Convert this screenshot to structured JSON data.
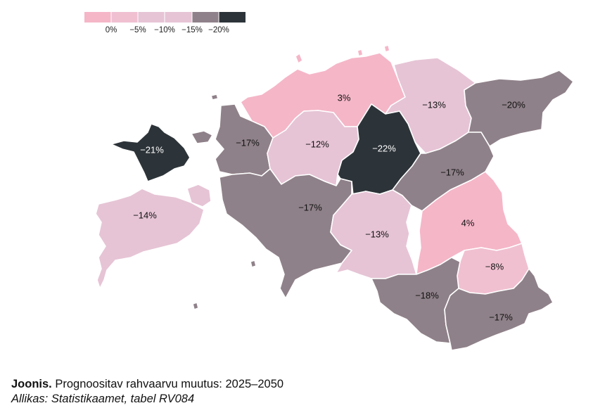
{
  "colors": {
    "bin0": "#f5b6c8",
    "bin1": "#f0c0d1",
    "bin2": "#e6c4d5",
    "bin3": "#8f8189",
    "bin4": "#2d3439",
    "white_text": "#ffffff",
    "dark_text": "#111111"
  },
  "legend": {
    "labels": [
      "0%",
      "−5%",
      "−10%",
      "−15%",
      "−20%"
    ]
  },
  "regions": [
    {
      "id": "harju",
      "label": "3%",
      "value": 3
    },
    {
      "id": "laane-viru",
      "label": "−13%",
      "value": -13
    },
    {
      "id": "ida-viru",
      "label": "−20%",
      "value": -20
    },
    {
      "id": "hiiu",
      "label": "−21%",
      "value": -21
    },
    {
      "id": "laane",
      "label": "−17%",
      "value": -17
    },
    {
      "id": "rapla",
      "label": "−12%",
      "value": -12
    },
    {
      "id": "jarva",
      "label": "−22%",
      "value": -22
    },
    {
      "id": "jogeva",
      "label": "−17%",
      "value": -17
    },
    {
      "id": "saare",
      "label": "−14%",
      "value": -14
    },
    {
      "id": "parnu",
      "label": "−17%",
      "value": -17
    },
    {
      "id": "viljandi",
      "label": "−13%",
      "value": -13
    },
    {
      "id": "tartu",
      "label": "4%",
      "value": 4
    },
    {
      "id": "polva",
      "label": "−8%",
      "value": -8
    },
    {
      "id": "valga",
      "label": "−18%",
      "value": -18
    },
    {
      "id": "voru",
      "label": "−17%",
      "value": -17
    }
  ],
  "caption": {
    "bold": "Joonis.",
    "text": " Prognoositav rahvaarvu muutus: 2025–2050",
    "source": "Allikas: Statistikaamet, tabel RV084"
  }
}
